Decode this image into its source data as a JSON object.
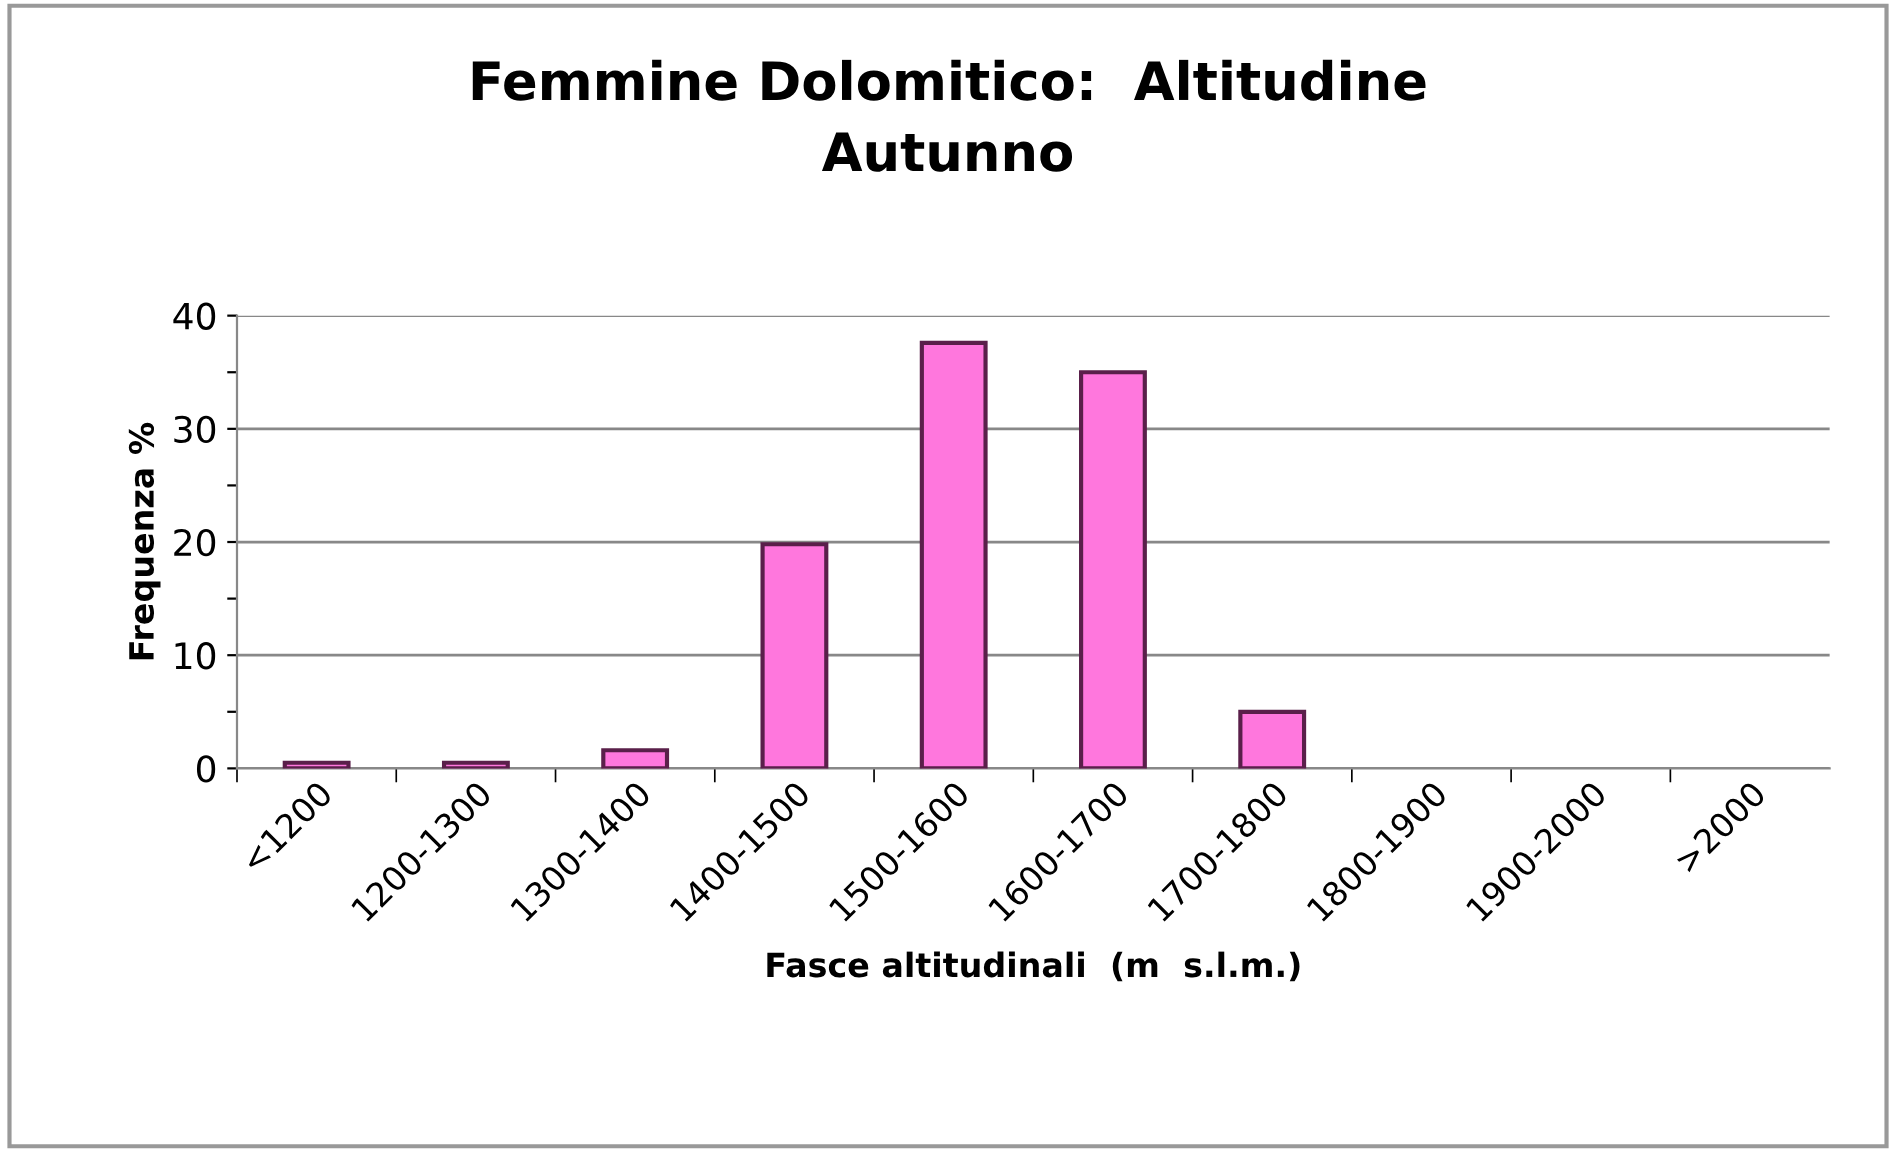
{
  "chart_data": {
    "type": "bar",
    "title": "Femmine Dolomitico:  Altitudine\nAutunno",
    "xlabel": "Fasce altitudinali  (m  s.l.m.)",
    "ylabel": "Frequenza %",
    "categories": [
      "<1200",
      "1200-1300",
      "1300-1400",
      "1400-1500",
      "1500-1600",
      "1600-1700",
      "1700-1800",
      "1800-1900",
      "1900-2000",
      ">2000"
    ],
    "values": [
      0.5,
      0.5,
      1.6,
      19.8,
      37.6,
      35.0,
      5.0,
      0,
      0,
      0
    ],
    "color": "#ff77dd",
    "ylim": [
      0,
      40
    ],
    "yticks": [
      0,
      {
        "value": 5,
        "label": null
      },
      10,
      {
        "value": 15,
        "label": null
      },
      20,
      {
        "value": 25,
        "label": null
      },
      30,
      {
        "value": 35,
        "label": null
      },
      40
    ],
    "grid": "y",
    "legend": false
  }
}
